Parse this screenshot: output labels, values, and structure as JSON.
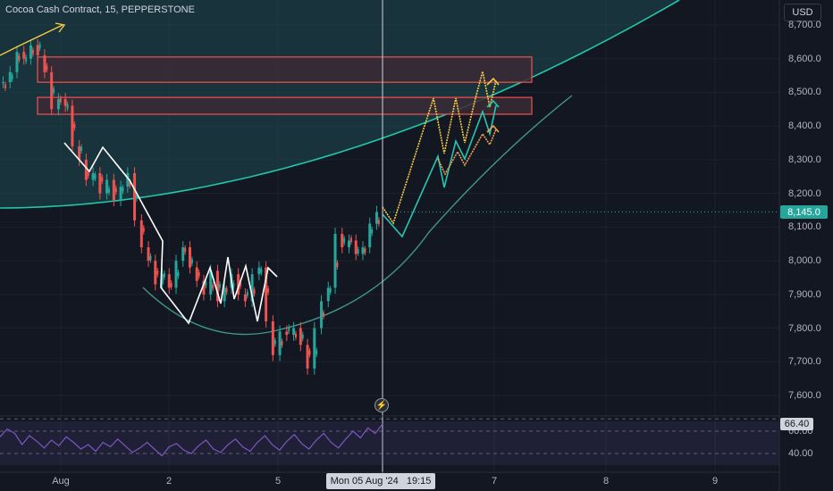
{
  "header": {
    "symbol_title": "Cocoa Cash Contract, 15, PEPPERSTONE"
  },
  "price_axis": {
    "currency": "USD",
    "ticks": [
      "8,700.0",
      "8,600.0",
      "8,500.0",
      "8,400.0",
      "8,300.0",
      "8,200.0",
      "8,100.0",
      "8,000.0",
      "7,900.0",
      "7,800.0",
      "7,700.0",
      "7,600.0"
    ],
    "last_price": "8,145.0"
  },
  "rsi_axis": {
    "ticks": [
      "60.00",
      "40.00"
    ],
    "value": "66.40"
  },
  "time_axis": {
    "ticks": [
      "Aug",
      "2",
      "5",
      "7",
      "8",
      "9"
    ],
    "crosshair_label": "Mon 05 Aug '24   19:15"
  },
  "event_marker": {
    "icon": "lightning-icon",
    "glyph": "⚡"
  },
  "colors": {
    "background": "#131722",
    "up": "#26a69a",
    "down": "#ef5350",
    "zone_fill": "#3a2a35",
    "zone_border": "#ef5350",
    "teal_line": "#22c7a9",
    "projection_yellow": "#f7c948",
    "projection_orange": "#f0a050",
    "projection_teal": "#26c6b0",
    "rsi_line": "#7e57c2",
    "crosshair": "#d1d4dc"
  },
  "chart_data": {
    "type": "candlestick",
    "price_range": [
      7560,
      8740
    ],
    "price_grid": [
      8700,
      8600,
      8500,
      8400,
      8300,
      8200,
      8100,
      8000,
      7900,
      7800,
      7700,
      7600
    ],
    "last_price": 8145,
    "resistance_zones": [
      {
        "low": 8530,
        "high": 8605
      },
      {
        "low": 8435,
        "high": 8485
      }
    ],
    "price_path": [
      [
        0,
        8530
      ],
      [
        2,
        8560
      ],
      [
        4,
        8620
      ],
      [
        6,
        8600
      ],
      [
        8,
        8640
      ],
      [
        10,
        8610
      ],
      [
        12,
        8560
      ],
      [
        14,
        8450
      ],
      [
        16,
        8480
      ],
      [
        18,
        8460
      ],
      [
        20,
        8340
      ],
      [
        22,
        8300
      ],
      [
        24,
        8240
      ],
      [
        26,
        8260
      ],
      [
        28,
        8200
      ],
      [
        30,
        8240
      ],
      [
        32,
        8180
      ],
      [
        34,
        8220
      ],
      [
        36,
        8260
      ],
      [
        38,
        8120
      ],
      [
        40,
        8040
      ],
      [
        42,
        8000
      ],
      [
        44,
        7930
      ],
      [
        46,
        7960
      ],
      [
        48,
        7920
      ],
      [
        50,
        8000
      ],
      [
        52,
        8040
      ],
      [
        54,
        7980
      ],
      [
        56,
        7940
      ],
      [
        58,
        7900
      ],
      [
        60,
        7970
      ],
      [
        62,
        7880
      ],
      [
        64,
        7920
      ],
      [
        66,
        7960
      ],
      [
        68,
        7900
      ],
      [
        70,
        7880
      ],
      [
        72,
        7960
      ],
      [
        74,
        7980
      ],
      [
        76,
        7820
      ],
      [
        78,
        7720
      ],
      [
        80,
        7790
      ],
      [
        82,
        7780
      ],
      [
        84,
        7800
      ],
      [
        86,
        7750
      ],
      [
        88,
        7680
      ],
      [
        90,
        7800
      ],
      [
        92,
        7880
      ],
      [
        94,
        7920
      ],
      [
        96,
        8080
      ],
      [
        98,
        8040
      ],
      [
        100,
        8060
      ],
      [
        102,
        8020
      ],
      [
        104,
        8040
      ],
      [
        106,
        8110
      ],
      [
        108,
        8145
      ]
    ],
    "rsi_range": [
      25,
      75
    ],
    "rsi_grid": [
      60,
      40
    ],
    "rsi_value": 66.4,
    "rsi": [
      55,
      62,
      58,
      48,
      56,
      51,
      45,
      52,
      47,
      55,
      50,
      44,
      48,
      42,
      50,
      46,
      53,
      47,
      41,
      45,
      50,
      44,
      38,
      46,
      49,
      43,
      40,
      47,
      52,
      44,
      41,
      48,
      53,
      46,
      42,
      50,
      56,
      48,
      43,
      51,
      57,
      49,
      44,
      52,
      58,
      50,
      45,
      53,
      60,
      54,
      63,
      58,
      66.4
    ]
  }
}
